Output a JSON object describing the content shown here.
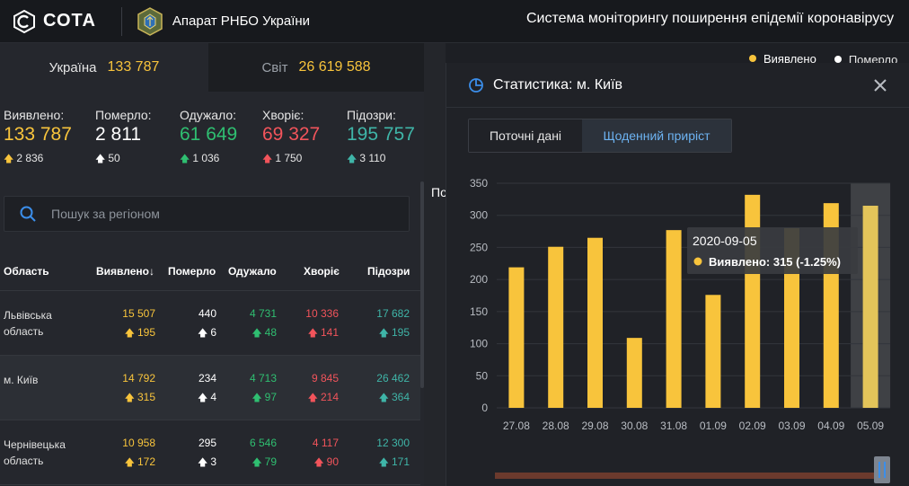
{
  "header": {
    "brand": "СОТА",
    "org": "Апарат РНБО України",
    "system_title": "Система моніторингу поширення епідемії коронавірусу"
  },
  "countries": [
    {
      "name": "Україна",
      "value": "133 787"
    },
    {
      "name": "Світ",
      "value": "26 619 588"
    }
  ],
  "summary": [
    {
      "label": "Виявлено:",
      "value": "133 787",
      "inc": "2 836",
      "color": "#f8c43c"
    },
    {
      "label": "Померло:",
      "value": "2 811",
      "inc": "50",
      "color": "#ffffff"
    },
    {
      "label": "Одужало:",
      "value": "61 649",
      "inc": "1 036",
      "color": "#2fbf71"
    },
    {
      "label": "Хворіє:",
      "value": "69 327",
      "inc": "1 750",
      "color": "#f2545b"
    },
    {
      "label": "Підозри:",
      "value": "195 757",
      "inc": "3 110",
      "color": "#3fb5a8"
    }
  ],
  "search": {
    "placeholder": "Пошук за регіоном"
  },
  "table": {
    "headers": [
      "Область",
      "Виявлено",
      "Померло",
      "Одужало",
      "Хворіє",
      "Підозри"
    ],
    "sort_arrow": "↓",
    "rows": [
      {
        "region": "Львівська область",
        "confirmed": "15 507",
        "confirmed_inc": "195",
        "deaths": "440",
        "deaths_inc": "6",
        "recovered": "4 731",
        "recovered_inc": "48",
        "sick": "10 336",
        "sick_inc": "141",
        "suspected": "17 682",
        "suspected_inc": "195"
      },
      {
        "region": "м. Київ",
        "confirmed": "14 792",
        "confirmed_inc": "315",
        "deaths": "234",
        "deaths_inc": "4",
        "recovered": "4 713",
        "recovered_inc": "97",
        "sick": "9 845",
        "sick_inc": "214",
        "suspected": "26 462",
        "suspected_inc": "364"
      },
      {
        "region": "Чернівецька область",
        "confirmed": "10 958",
        "confirmed_inc": "172",
        "deaths": "295",
        "deaths_inc": "3",
        "recovered": "6 546",
        "recovered_inc": "79",
        "sick": "4 117",
        "sick_inc": "90",
        "suspected": "12 300",
        "suspected_inc": "171"
      }
    ]
  },
  "map": {
    "partial_label": "По"
  },
  "tabs": [
    {
      "label": "Виявлено",
      "color": "#f8c43c",
      "active": true
    },
    {
      "label": "Померло",
      "color": "#ffffff",
      "active": false
    }
  ],
  "modal": {
    "title": "Статистика: м. Київ",
    "segments": [
      "Поточні дані",
      "Щоденний приріст"
    ],
    "selected_segment": "Щоденний приріст"
  },
  "chart_data": {
    "type": "bar",
    "categories": [
      "27.08",
      "28.08",
      "29.08",
      "30.08",
      "31.08",
      "01.09",
      "02.09",
      "03.09",
      "04.09",
      "05.09"
    ],
    "series": [
      {
        "name": "Виявлено",
        "values": [
          219,
          251,
          265,
          109,
          277,
          176,
          332,
          280,
          319,
          315
        ],
        "color": "#f8c43c"
      }
    ],
    "ylim": [
      0,
      350
    ],
    "yticks": [
      0,
      50,
      100,
      150,
      200,
      250,
      300,
      350
    ],
    "grid": true,
    "highlight_index": 9,
    "tooltip": {
      "date": "2020-09-05",
      "text": "Виявлено: 315 (-1.25%)"
    }
  }
}
